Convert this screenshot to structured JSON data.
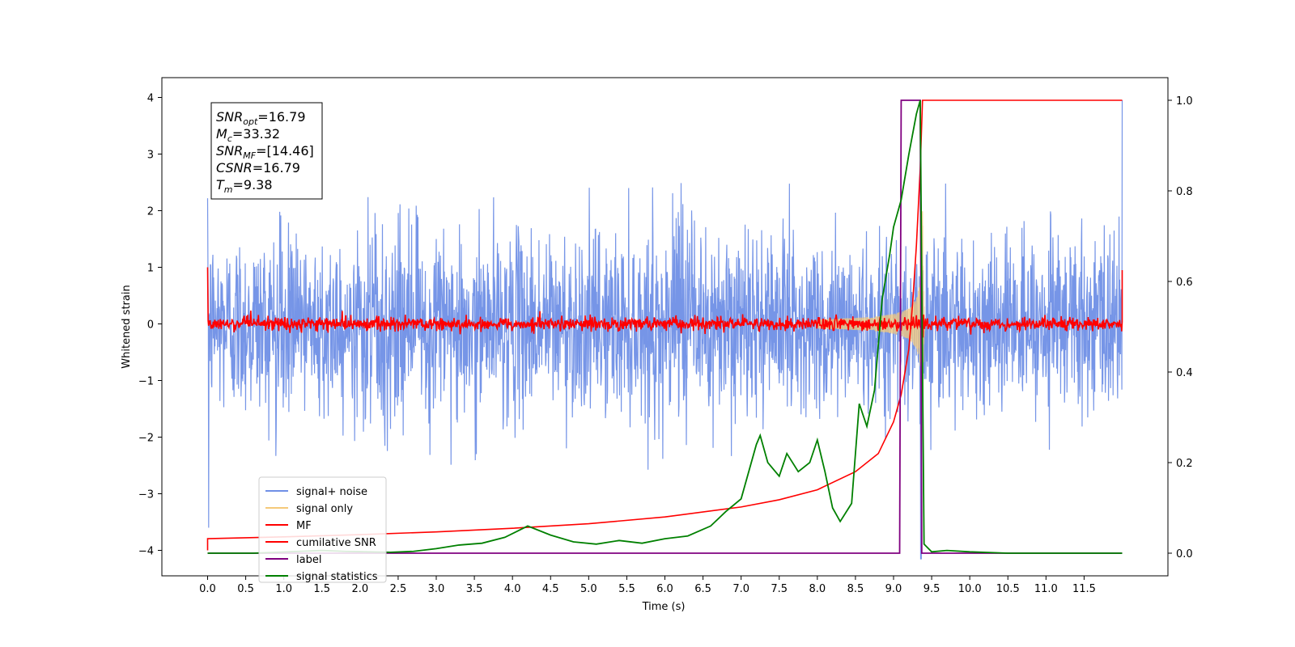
{
  "chart_data": {
    "type": "line",
    "xlabel": "Time (s)",
    "ylabel": "Whitened strain",
    "xlim": [
      -0.6,
      12.6
    ],
    "ylim_left": [
      -4.45,
      4.35
    ],
    "ylim_right": [
      -0.05,
      1.05
    ],
    "x_ticks": [
      "0.0",
      "0.5",
      "1.0",
      "1.5",
      "2.0",
      "2.5",
      "3.0",
      "3.5",
      "4.0",
      "4.5",
      "5.0",
      "5.5",
      "6.0",
      "6.5",
      "7.0",
      "7.5",
      "8.0",
      "8.5",
      "9.0",
      "9.5",
      "10.0",
      "10.5",
      "11.0",
      "11.5"
    ],
    "y_ticks_left": [
      "4",
      "3",
      "2",
      "1",
      "0",
      "−1",
      "−2",
      "−3",
      "−4"
    ],
    "y_ticks_right": [
      "1.0",
      "0.8",
      "0.6",
      "0.4",
      "0.2",
      "0.0"
    ],
    "stats_box": [
      {
        "sym": "SNR",
        "sub": "opt",
        "value": "=16.79"
      },
      {
        "sym": "M",
        "sub": "c",
        "value": "=33.32"
      },
      {
        "sym": "SNR",
        "sub": "MF",
        "value": "=[14.46]"
      },
      {
        "sym": "CSNR",
        "sub": "",
        "value": "=16.79"
      },
      {
        "sym": "T",
        "sub": "m",
        "value": "=9.38"
      }
    ],
    "legend": [
      {
        "label": "signal+ noise",
        "color": "#6f8fe6"
      },
      {
        "label": "signal only",
        "color": "#f5c97a"
      },
      {
        "label": "MF",
        "color": "#ff0000"
      },
      {
        "label": "cumilative SNR",
        "color": "#ff0000"
      },
      {
        "label": "label",
        "color": "#800080"
      },
      {
        "label": "signal statistics",
        "color": "#008000"
      }
    ],
    "series": [
      {
        "name": "signal+ noise",
        "axis": "left",
        "description_range": [
          -2.6,
          2.6
        ],
        "x_range": [
          0.0,
          12.0
        ]
      },
      {
        "name": "signal only",
        "axis": "left",
        "chirp_peak_time": 9.38,
        "peak_amplitude": 2.5
      },
      {
        "name": "MF",
        "axis": "left",
        "x_range": [
          0.0,
          12.0
        ],
        "endpoints": [
          {
            "x": 0.0,
            "y": 1.0
          },
          {
            "x": 12.0,
            "y": 0.95
          }
        ]
      },
      {
        "name": "cumilative SNR",
        "axis": "right",
        "x": [
          0.0,
          1.0,
          2.0,
          3.0,
          4.0,
          5.0,
          6.0,
          7.0,
          7.5,
          8.0,
          8.5,
          8.8,
          9.0,
          9.1,
          9.2,
          9.25,
          9.3,
          9.35,
          9.38,
          12.0
        ],
        "y": [
          0.032,
          0.036,
          0.041,
          0.047,
          0.055,
          0.065,
          0.08,
          0.102,
          0.118,
          0.14,
          0.18,
          0.22,
          0.29,
          0.35,
          0.45,
          0.55,
          0.68,
          0.85,
          1.0,
          1.0
        ]
      },
      {
        "name": "label",
        "axis": "right",
        "x": [
          0.0,
          9.08,
          9.1,
          9.35,
          9.37,
          12.0
        ],
        "y": [
          0.0,
          0.0,
          1.0,
          1.0,
          0.0,
          0.0
        ]
      },
      {
        "name": "signal statistics",
        "axis": "right",
        "x": [
          0.0,
          0.3,
          0.6,
          0.9,
          1.2,
          1.5,
          1.8,
          2.1,
          2.4,
          2.7,
          3.0,
          3.3,
          3.6,
          3.9,
          4.2,
          4.5,
          4.8,
          5.1,
          5.4,
          5.7,
          6.0,
          6.3,
          6.6,
          6.8,
          7.0,
          7.2,
          7.25,
          7.35,
          7.5,
          7.6,
          7.75,
          7.9,
          8.0,
          8.1,
          8.2,
          8.3,
          8.45,
          8.55,
          8.65,
          8.75,
          8.85,
          8.95,
          9.0,
          9.1,
          9.2,
          9.3,
          9.35,
          9.4,
          9.5,
          9.7,
          10.0,
          10.5,
          11.0,
          11.5,
          12.0
        ],
        "y": [
          0.0,
          0.0,
          0.0,
          0.002,
          0.004,
          0.006,
          0.004,
          0.003,
          0.002,
          0.004,
          0.01,
          0.018,
          0.022,
          0.035,
          0.06,
          0.04,
          0.025,
          0.02,
          0.028,
          0.022,
          0.032,
          0.038,
          0.06,
          0.092,
          0.12,
          0.24,
          0.26,
          0.2,
          0.17,
          0.22,
          0.18,
          0.2,
          0.25,
          0.18,
          0.1,
          0.07,
          0.11,
          0.33,
          0.28,
          0.36,
          0.56,
          0.66,
          0.72,
          0.78,
          0.88,
          0.97,
          1.0,
          0.02,
          0.003,
          0.006,
          0.003,
          0.0,
          0.0,
          0.0,
          0.0
        ]
      }
    ]
  }
}
